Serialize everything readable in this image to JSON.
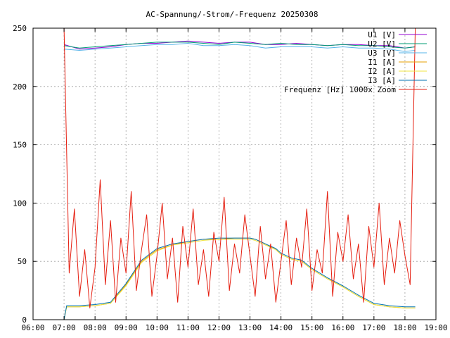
{
  "chart_data": {
    "type": "line",
    "title": "AC-Spannung/-Strom/-Frequenz 20250308",
    "xlabel": "",
    "ylabel": "",
    "x_ticks": [
      "06:00",
      "07:00",
      "08:00",
      "09:00",
      "10:00",
      "11:00",
      "12:00",
      "13:00",
      "14:00",
      "15:00",
      "16:00",
      "17:00",
      "18:00",
      "19:00"
    ],
    "y_ticks": [
      "0",
      "50",
      "100",
      "150",
      "200",
      "250"
    ],
    "xlim": [
      "06:00",
      "19:00"
    ],
    "ylim": [
      0,
      250
    ],
    "grid": true,
    "legend_position": "top-right",
    "series": [
      {
        "name": "U1 [V]",
        "color": "#9400d3",
        "x": [
          "07:00",
          "07:30",
          "08:00",
          "08:30",
          "09:00",
          "09:30",
          "10:00",
          "10:30",
          "11:00",
          "11:30",
          "12:00",
          "12:30",
          "13:00",
          "13:30",
          "14:00",
          "14:30",
          "15:00",
          "15:30",
          "16:00",
          "16:30",
          "17:00",
          "17:30",
          "18:00",
          "18:20"
        ],
        "y": [
          236,
          232,
          233,
          234,
          236,
          237,
          237,
          238,
          239,
          238,
          237,
          238,
          238,
          236,
          236,
          237,
          236,
          235,
          236,
          236,
          235,
          235,
          233,
          234
        ]
      },
      {
        "name": "U2 [V]",
        "color": "#009e73",
        "x": [
          "07:00",
          "07:30",
          "08:00",
          "08:30",
          "09:00",
          "09:30",
          "10:00",
          "10:30",
          "11:00",
          "11:30",
          "12:00",
          "12:30",
          "13:00",
          "13:30",
          "14:00",
          "14:30",
          "15:00",
          "15:30",
          "16:00",
          "16:30",
          "17:00",
          "17:30",
          "18:00",
          "18:20"
        ],
        "y": [
          235,
          233,
          234,
          235,
          236,
          237,
          238,
          238,
          238,
          237,
          236,
          238,
          237,
          236,
          237,
          236,
          236,
          235,
          236,
          235,
          235,
          234,
          233,
          234
        ]
      },
      {
        "name": "U3 [V]",
        "color": "#56b4e9",
        "x": [
          "07:00",
          "07:30",
          "08:00",
          "08:30",
          "09:00",
          "09:30",
          "10:00",
          "10:30",
          "11:00",
          "11:30",
          "12:00",
          "12:30",
          "13:00",
          "13:30",
          "14:00",
          "14:30",
          "15:00",
          "15:30",
          "16:00",
          "16:30",
          "17:00",
          "17:30",
          "18:00",
          "18:20"
        ],
        "y": [
          232,
          231,
          232,
          233,
          234,
          235,
          236,
          236,
          237,
          235,
          235,
          236,
          235,
          233,
          234,
          234,
          234,
          233,
          234,
          233,
          233,
          232,
          230,
          231
        ]
      },
      {
        "name": "I1 [A]",
        "color": "#e69f00",
        "x": [
          "07:00",
          "07:05",
          "07:30",
          "08:00",
          "08:30",
          "09:00",
          "09:30",
          "10:00",
          "10:30",
          "11:00",
          "11:30",
          "12:00",
          "12:30",
          "13:00",
          "13:10",
          "13:30",
          "13:50",
          "14:00",
          "14:20",
          "14:40",
          "15:00",
          "15:30",
          "16:00",
          "16:30",
          "17:00",
          "17:30",
          "18:00",
          "18:20"
        ],
        "y": [
          0,
          11,
          11,
          12,
          14,
          30,
          50,
          60,
          64,
          67,
          69,
          69,
          70,
          70,
          69,
          65,
          60,
          56,
          52,
          50,
          43,
          35,
          28,
          20,
          13,
          11,
          10,
          10
        ]
      },
      {
        "name": "I2 [A]",
        "color": "#f0e442",
        "x": [
          "07:00",
          "07:05",
          "07:30",
          "08:00",
          "08:30",
          "09:00",
          "09:30",
          "10:00",
          "10:30",
          "11:00",
          "11:30",
          "12:00",
          "12:30",
          "13:00",
          "13:10",
          "13:30",
          "13:50",
          "14:00",
          "14:20",
          "14:40",
          "15:00",
          "15:30",
          "16:00",
          "16:30",
          "17:00",
          "17:30",
          "18:00",
          "18:20"
        ],
        "y": [
          0,
          11,
          11,
          12,
          14,
          29,
          49,
          59,
          64,
          66,
          68,
          69,
          69,
          69,
          68,
          64,
          60,
          56,
          52,
          50,
          43,
          35,
          28,
          20,
          13,
          11,
          10,
          10
        ]
      },
      {
        "name": "I3 [A]",
        "color": "#0072b2",
        "x": [
          "07:00",
          "07:05",
          "07:30",
          "08:00",
          "08:30",
          "09:00",
          "09:30",
          "10:00",
          "10:30",
          "11:00",
          "11:30",
          "12:00",
          "12:30",
          "13:00",
          "13:10",
          "13:30",
          "13:50",
          "14:00",
          "14:20",
          "14:40",
          "15:00",
          "15:30",
          "16:00",
          "16:30",
          "17:00",
          "17:30",
          "18:00",
          "18:20"
        ],
        "y": [
          0,
          12,
          12,
          13,
          15,
          31,
          51,
          61,
          65,
          67,
          69,
          70,
          70,
          70,
          69,
          65,
          61,
          57,
          53,
          51,
          44,
          36,
          29,
          21,
          14,
          12,
          11,
          11
        ]
      },
      {
        "name": "Frequenz [Hz] 1000x Zoom",
        "color": "#e51e10",
        "x": [
          "07:00",
          "07:10",
          "07:20",
          "07:30",
          "07:40",
          "07:50",
          "08:00",
          "08:10",
          "08:20",
          "08:30",
          "08:40",
          "08:50",
          "09:00",
          "09:10",
          "09:20",
          "09:30",
          "09:40",
          "09:50",
          "10:00",
          "10:10",
          "10:20",
          "10:30",
          "10:40",
          "10:50",
          "11:00",
          "11:10",
          "11:20",
          "11:30",
          "11:40",
          "11:50",
          "12:00",
          "12:10",
          "12:20",
          "12:30",
          "12:40",
          "12:50",
          "13:00",
          "13:10",
          "13:20",
          "13:30",
          "13:40",
          "13:50",
          "14:00",
          "14:10",
          "14:20",
          "14:30",
          "14:40",
          "14:50",
          "15:00",
          "15:10",
          "15:20",
          "15:30",
          "15:40",
          "15:50",
          "16:00",
          "16:10",
          "16:20",
          "16:30",
          "16:40",
          "16:50",
          "17:00",
          "17:10",
          "17:20",
          "17:30",
          "17:40",
          "17:50",
          "18:00",
          "18:10",
          "18:20"
        ],
        "y": [
          250,
          40,
          95,
          20,
          60,
          10,
          45,
          120,
          30,
          85,
          15,
          70,
          40,
          110,
          25,
          60,
          90,
          20,
          55,
          100,
          35,
          70,
          15,
          80,
          45,
          95,
          30,
          60,
          20,
          75,
          50,
          105,
          25,
          65,
          40,
          90,
          55,
          20,
          80,
          35,
          65,
          15,
          50,
          85,
          30,
          70,
          45,
          95,
          25,
          60,
          40,
          110,
          20,
          75,
          50,
          90,
          35,
          65,
          15,
          80,
          45,
          100,
          30,
          70,
          40,
          85,
          55,
          30,
          250
        ]
      }
    ]
  }
}
